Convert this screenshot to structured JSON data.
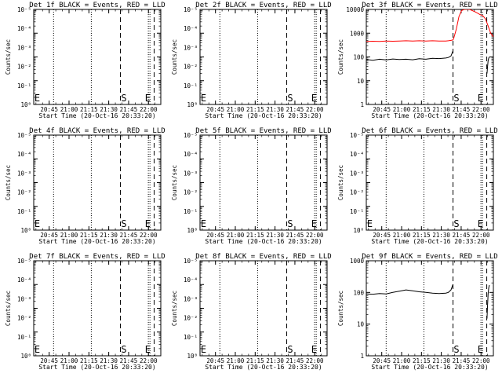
{
  "shared": {
    "xlabel": "Start Time (20-Oct-16 20:33:20)",
    "ylabel": "Counts/sec",
    "x_tick_labels": [
      "20:45",
      "21:00",
      "21:15",
      "21:30",
      "21:45",
      "22:00"
    ],
    "x_ticks_minutes": [
      11.67,
      26.67,
      41.67,
      56.67,
      71.67,
      86.67
    ],
    "x_range_minutes": [
      0,
      96
    ],
    "marker_labels": {
      "start": "S",
      "end": "E"
    },
    "colors": {
      "events": "#000000",
      "lld": "#ff0000",
      "background": "#ffffff"
    }
  },
  "chart_data": [
    {
      "type": "line",
      "title": "Det 1f BLACK = Events, RED = LLD",
      "yscale": "log",
      "ylim": [
        1,
        10000
      ],
      "y_tick_labels": [
        "10⁰",
        "10⁻¹",
        "10⁻²",
        "10⁻³",
        "10⁻⁴",
        "10⁻⁵"
      ],
      "dotted_lines_minutes": [
        15.0,
        43.5,
        86.6,
        87.8
      ],
      "dashed_lines_minutes": [
        65.5,
        91.0
      ],
      "markers": [
        {
          "label": "E",
          "x_minutes": 0.5
        },
        {
          "label": "S",
          "x_minutes": 66.0
        },
        {
          "label": "E",
          "x_minutes": 84.0
        }
      ],
      "series": []
    },
    {
      "type": "line",
      "title": "Det 2f BLACK = Events, RED = LLD",
      "yscale": "log",
      "ylim": [
        1,
        10000
      ],
      "y_tick_labels": [
        "10⁰",
        "10⁻¹",
        "10⁻²",
        "10⁻³",
        "10⁻⁴",
        "10⁻⁵"
      ],
      "dotted_lines_minutes": [
        15.0,
        43.5,
        86.6,
        87.8
      ],
      "dashed_lines_minutes": [
        65.5,
        91.0
      ],
      "markers": [
        {
          "label": "E",
          "x_minutes": 0.5
        },
        {
          "label": "S",
          "x_minutes": 66.0
        },
        {
          "label": "E",
          "x_minutes": 84.0
        }
      ],
      "series": []
    },
    {
      "type": "line",
      "title": "Det 3f BLACK = Events, RED = LLD",
      "yscale": "log",
      "ylim": [
        1,
        10000
      ],
      "y_tick_labels": [
        "1",
        "10",
        "100",
        "1000",
        "10000"
      ],
      "dotted_lines_minutes": [
        15.0,
        43.5,
        86.6,
        87.8
      ],
      "dashed_lines_minutes": [
        65.5,
        91.0
      ],
      "markers": [
        {
          "label": "S",
          "x_minutes": 66.0
        },
        {
          "label": "E",
          "x_minutes": 84.0
        }
      ],
      "series": [
        {
          "color": "red",
          "x": [
            0,
            5,
            10,
            15,
            20,
            25,
            30,
            35,
            40,
            45,
            50,
            55,
            60,
            62,
            64,
            65.5,
            66,
            68,
            70,
            72,
            74,
            76,
            78,
            80,
            82,
            84,
            86,
            88,
            90,
            92,
            94,
            96
          ],
          "y": [
            450,
            460,
            450,
            470,
            460,
            470,
            480,
            470,
            480,
            470,
            480,
            470,
            470,
            480,
            500,
            520,
            600,
            1500,
            5000,
            9000,
            10000,
            10000,
            10000,
            9000,
            8000,
            7000,
            6000,
            5500,
            4000,
            2000,
            1000,
            700
          ]
        },
        {
          "color": "black",
          "x": [
            0,
            5,
            10,
            15,
            20,
            25,
            30,
            35,
            40,
            45,
            50,
            55,
            60,
            62,
            64,
            65.5
          ],
          "y": [
            78,
            72,
            80,
            75,
            82,
            78,
            80,
            76,
            84,
            80,
            88,
            85,
            90,
            95,
            110,
            180
          ]
        },
        {
          "color": "black",
          "x": [
            91.2,
            91.6,
            92,
            92.5,
            93
          ],
          "y": [
            20,
            40,
            70,
            90,
            100
          ]
        }
      ]
    },
    {
      "type": "line",
      "title": "Det 4f BLACK = Events, RED = LLD",
      "yscale": "log",
      "ylim": [
        1,
        10000
      ],
      "y_tick_labels": [
        "10⁰",
        "10⁻¹",
        "10⁻²",
        "10⁻³",
        "10⁻⁴",
        "10⁻⁵"
      ],
      "dotted_lines_minutes": [
        15.0,
        43.5,
        86.6,
        87.8
      ],
      "dashed_lines_minutes": [
        65.5,
        91.0
      ],
      "markers": [
        {
          "label": "E",
          "x_minutes": 0.5
        },
        {
          "label": "S",
          "x_minutes": 66.0
        },
        {
          "label": "E",
          "x_minutes": 84.0
        }
      ],
      "series": []
    },
    {
      "type": "line",
      "title": "Det 5f BLACK = Events, RED = LLD",
      "yscale": "log",
      "ylim": [
        1,
        10000
      ],
      "y_tick_labels": [
        "10⁰",
        "10⁻¹",
        "10⁻²",
        "10⁻³",
        "10⁻⁴",
        "10⁻⁵"
      ],
      "dotted_lines_minutes": [
        15.0,
        43.5,
        86.6,
        87.8
      ],
      "dashed_lines_minutes": [
        65.5,
        91.0
      ],
      "markers": [
        {
          "label": "E",
          "x_minutes": 0.5
        },
        {
          "label": "S",
          "x_minutes": 66.0
        },
        {
          "label": "E",
          "x_minutes": 84.0
        }
      ],
      "series": []
    },
    {
      "type": "line",
      "title": "Det 6f BLACK = Events, RED = LLD",
      "yscale": "log",
      "ylim": [
        1,
        10000
      ],
      "y_tick_labels": [
        "10⁰",
        "10⁻¹",
        "10⁻²",
        "10⁻³",
        "10⁻⁴",
        "10⁻⁵"
      ],
      "dotted_lines_minutes": [
        15.0,
        43.5,
        86.6,
        87.8
      ],
      "dashed_lines_minutes": [
        65.5,
        91.0
      ],
      "markers": [
        {
          "label": "E",
          "x_minutes": 0.5
        },
        {
          "label": "S",
          "x_minutes": 66.0
        },
        {
          "label": "E",
          "x_minutes": 84.0
        }
      ],
      "series": []
    },
    {
      "type": "line",
      "title": "Det 7f BLACK = Events, RED = LLD",
      "yscale": "log",
      "ylim": [
        1,
        10000
      ],
      "y_tick_labels": [
        "10⁰",
        "10⁻¹",
        "10⁻²",
        "10⁻³",
        "10⁻⁴",
        "10⁻⁵"
      ],
      "dotted_lines_minutes": [
        15.0,
        43.5,
        86.6,
        87.8
      ],
      "dashed_lines_minutes": [
        65.5,
        91.0
      ],
      "markers": [
        {
          "label": "E",
          "x_minutes": 0.5
        },
        {
          "label": "S",
          "x_minutes": 66.0
        },
        {
          "label": "E",
          "x_minutes": 84.0
        }
      ],
      "series": []
    },
    {
      "type": "line",
      "title": "Det 8f BLACK = Events, RED = LLD",
      "yscale": "log",
      "ylim": [
        1,
        10000
      ],
      "y_tick_labels": [
        "10⁰",
        "10⁻¹",
        "10⁻²",
        "10⁻³",
        "10⁻⁴",
        "10⁻⁵"
      ],
      "dotted_lines_minutes": [
        15.0,
        43.5,
        86.6,
        87.8
      ],
      "dashed_lines_minutes": [
        65.5,
        91.0
      ],
      "markers": [
        {
          "label": "E",
          "x_minutes": 0.5
        },
        {
          "label": "S",
          "x_minutes": 66.0
        },
        {
          "label": "E",
          "x_minutes": 84.0
        }
      ],
      "series": []
    },
    {
      "type": "line",
      "title": "Det 9f BLACK = Events, RED = LLD",
      "yscale": "log",
      "ylim": [
        1,
        1000
      ],
      "y_tick_labels": [
        "1",
        "10",
        "100",
        "1000"
      ],
      "dotted_lines_minutes": [
        15.0,
        43.5,
        86.6,
        87.8
      ],
      "dashed_lines_minutes": [
        65.5,
        91.0
      ],
      "markers": [
        {
          "label": "S",
          "x_minutes": 66.0
        },
        {
          "label": "E",
          "x_minutes": 84.0
        }
      ],
      "series": [
        {
          "color": "black",
          "x": [
            0,
            5,
            10,
            15,
            20,
            25,
            30,
            35,
            40,
            45,
            50,
            55,
            60,
            62,
            64,
            65.5
          ],
          "y": [
            90,
            88,
            92,
            90,
            100,
            110,
            120,
            112,
            105,
            100,
            95,
            92,
            95,
            100,
            120,
            180
          ]
        },
        {
          "color": "black",
          "x": [
            91.2,
            91.6,
            92,
            92.5,
            93
          ],
          "y": [
            15,
            40,
            90,
            140,
            170
          ]
        }
      ]
    }
  ]
}
